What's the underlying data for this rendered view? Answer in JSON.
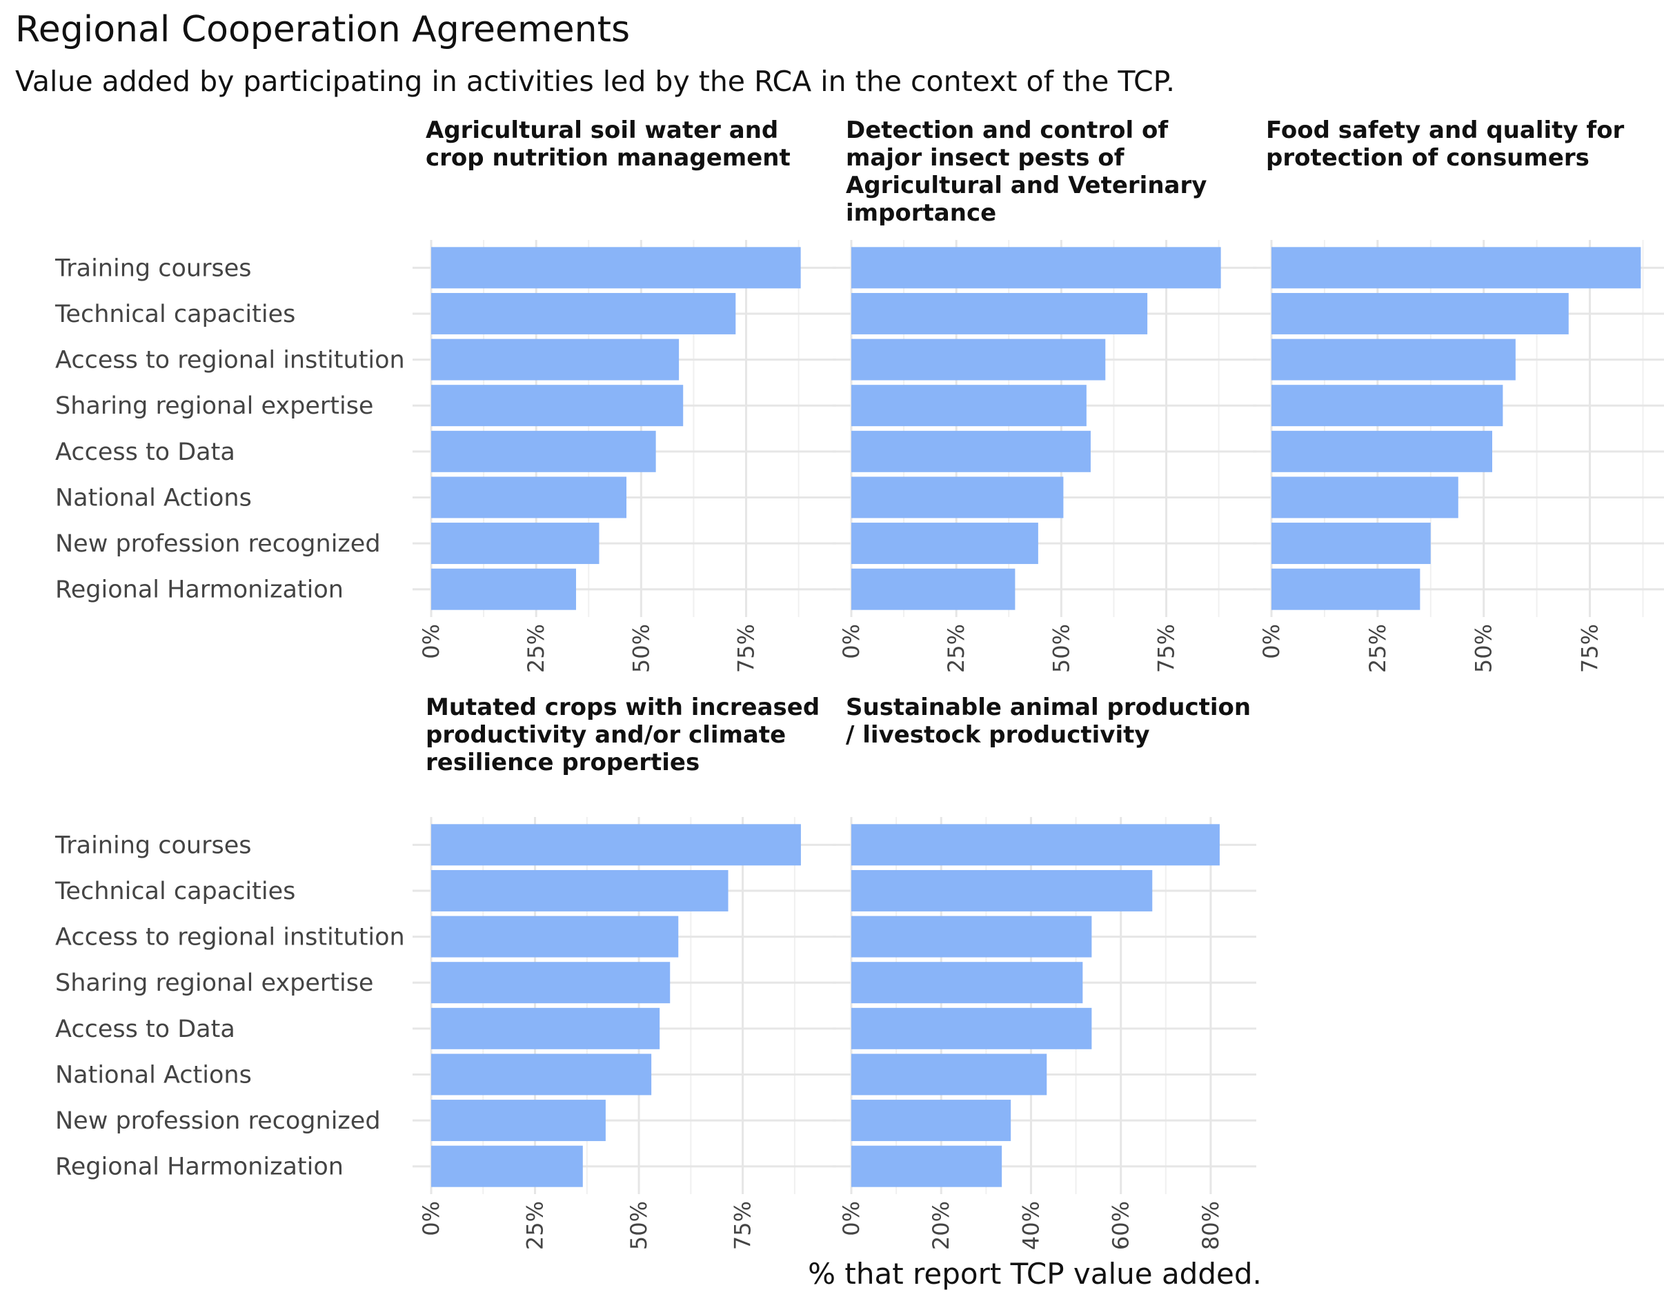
{
  "title": "Regional Cooperation Agreements",
  "subtitle": "Value added by participating in activities led by the RCA in the context of the TCP.",
  "chart_data": {
    "type": "bar",
    "orientation": "horizontal",
    "facet": true,
    "xlabel": "% that report TCP value added.",
    "bar_color": "#89b4f8",
    "grid": true,
    "categories": [
      "Training courses",
      "Technical capacities",
      "Access to regional institution",
      "Sharing regional expertise",
      "Access to Data",
      "National Actions",
      "New profession recognized",
      "Regional Harmonization"
    ],
    "panels": [
      {
        "title_lines": [
          "Agricultural soil water and",
          "crop nutrition management"
        ],
        "values": [
          88,
          72.5,
          59,
          60,
          53.5,
          46.5,
          40,
          34.5
        ],
        "xlim": [
          0,
          92
        ],
        "ticks": [
          0,
          25,
          50,
          75
        ],
        "tick_labels": [
          "0%",
          "25%",
          "50%",
          "75%"
        ]
      },
      {
        "title_lines": [
          "Detection and control of",
          "major insect pests of",
          "Agricultural and Veterinary",
          "importance"
        ],
        "values": [
          88,
          70.5,
          60.5,
          56,
          57,
          50.5,
          44.5,
          39
        ],
        "xlim": [
          0,
          92
        ],
        "ticks": [
          0,
          25,
          50,
          75
        ],
        "tick_labels": [
          "0%",
          "25%",
          "50%",
          "75%"
        ]
      },
      {
        "title_lines": [
          "Food safety and quality for",
          "protection of consumers"
        ],
        "values": [
          87,
          70,
          57.5,
          54.5,
          52,
          44,
          37.5,
          35
        ],
        "xlim": [
          0,
          91
        ],
        "ticks": [
          0,
          25,
          50,
          75
        ],
        "tick_labels": [
          "0%",
          "25%",
          "50%",
          "75%"
        ]
      },
      {
        "title_lines": [
          "Mutated crops with increased",
          "productivity and/or climate",
          "resilience properties"
        ],
        "values": [
          89,
          71.5,
          59.5,
          57.5,
          55,
          53,
          42,
          36.5
        ],
        "xlim": [
          0,
          93
        ],
        "ticks": [
          0,
          25,
          50,
          75
        ],
        "tick_labels": [
          "0%",
          "25%",
          "50%",
          "75%"
        ]
      },
      {
        "title_lines": [
          "Sustainable animal production",
          "/ livestock productivity"
        ],
        "values": [
          82,
          67,
          53.5,
          51.5,
          53.5,
          43.5,
          35.5,
          33.5
        ],
        "xlim": [
          0,
          86
        ],
        "ticks": [
          0,
          20,
          40,
          60,
          80
        ],
        "tick_labels": [
          "0%",
          "20%",
          "40%",
          "60%",
          "80%"
        ]
      }
    ]
  }
}
